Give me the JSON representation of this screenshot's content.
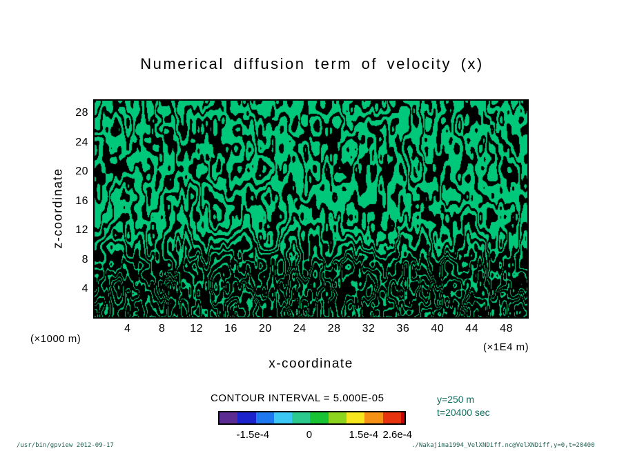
{
  "title": "Numerical diffusion term of velocity (x)",
  "chart_data": {
    "type": "heatmap",
    "title": "Numerical diffusion term of velocity (x)",
    "xlabel": "x-coordinate",
    "ylabel": "z-coordinate",
    "x_unit_label": "(×1E4 m)",
    "y_unit_label": "(×1000 m)",
    "x_ticks": [
      4,
      8,
      12,
      16,
      20,
      24,
      28,
      32,
      36,
      40,
      44,
      48
    ],
    "y_ticks": [
      4,
      8,
      12,
      16,
      20,
      24,
      28
    ],
    "xlim": [
      0,
      50.6
    ],
    "ylim": [
      0,
      29.9
    ],
    "grid": false,
    "contour_interval": "CONTOUR INTERVAL = 5.000E-05",
    "field_description": "Dense noisy contour field of the numerical diffusion term: green fill (values near zero) laced with fine black contour lines; contour density and black coverage increase sharply toward the bottom of the domain (below z ~ 8).",
    "colors": {
      "field_fill": "#00c87a",
      "contour_line": "#000000",
      "annotation_text": "#0d6e5e",
      "footer_text": "#1f5e50"
    },
    "colorbar": {
      "segments": [
        {
          "color": "#5b2c91",
          "span": 1
        },
        {
          "color": "#1c22cc",
          "span": 1
        },
        {
          "color": "#1e78f0",
          "span": 1
        },
        {
          "color": "#3cc8f5",
          "span": 1
        },
        {
          "color": "#2cc98e",
          "span": 1
        },
        {
          "color": "#19c434",
          "span": 1
        },
        {
          "color": "#8cd41e",
          "span": 1
        },
        {
          "color": "#f5e61e",
          "span": 1
        },
        {
          "color": "#f59114",
          "span": 1
        },
        {
          "color": "#e8330f",
          "span": 1
        },
        {
          "color": "#c80000",
          "span": 0.2
        }
      ],
      "tick_labels": [
        {
          "label": "-1.5e-4",
          "pos": 18.5
        },
        {
          "label": "0",
          "pos": 48.5
        },
        {
          "label": "1.5e-4",
          "pos": 77.5
        },
        {
          "label": "2.6e-4",
          "pos": 95.5
        }
      ]
    },
    "annotations": [
      "y=250 m",
      "t=20400 sec"
    ]
  },
  "footer": {
    "left": "/usr/bin/gpview  2012-09-17",
    "right": "./Nakajima1994_VelXNDiff.nc@VelXNDiff,y=0,t=20400"
  }
}
